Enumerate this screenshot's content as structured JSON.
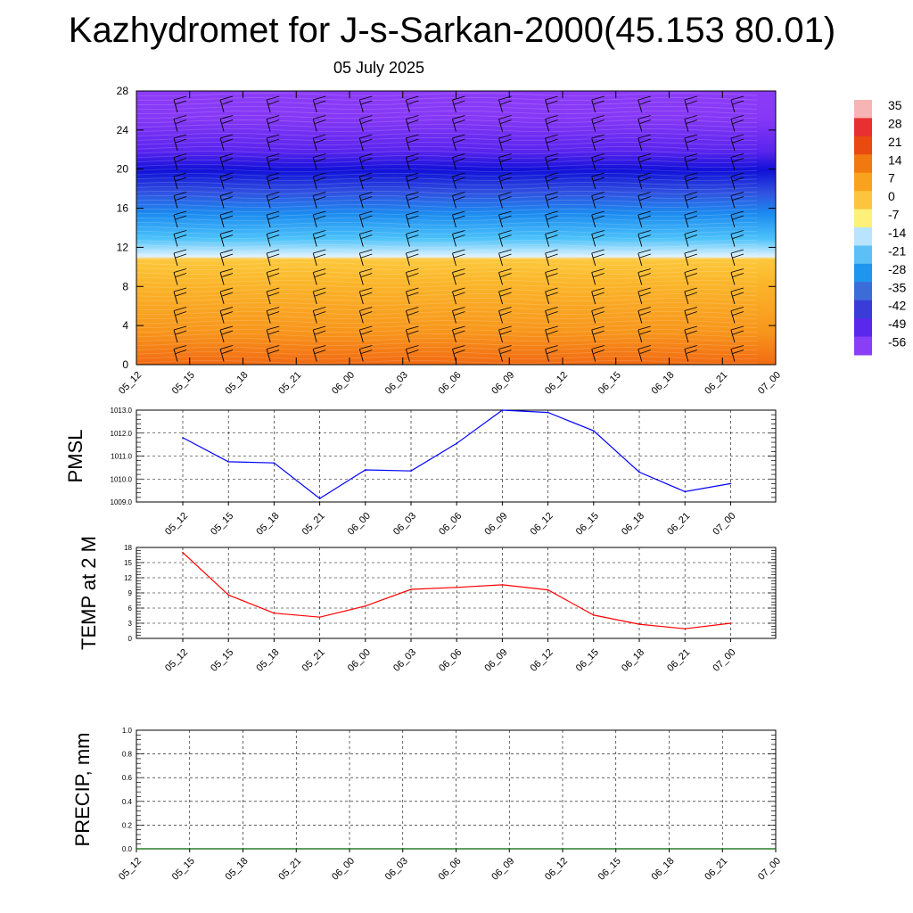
{
  "title": "Kazhydromet for J-s-Sarkan-2000(45.153 80.01)",
  "subtitle": "05 July 2025",
  "chart_data": [
    {
      "type": "heatmap",
      "name": "temperature-height-section",
      "title": "",
      "ylabel": "",
      "x_ticks": [
        "05_12",
        "05_15",
        "05_18",
        "05_21",
        "06_00",
        "06_03",
        "06_06",
        "06_09",
        "06_12",
        "06_15",
        "06_18",
        "06_21",
        "07_00"
      ],
      "y_ticks": [
        0,
        4,
        8,
        12,
        16,
        20,
        24,
        28
      ],
      "ylim": [
        0,
        28
      ],
      "colorbar_labels": [
        "35",
        "28",
        "21",
        "14",
        "7",
        "0",
        "-7",
        "-14",
        "-21",
        "-28",
        "-35",
        "-42",
        "-49",
        "-56"
      ],
      "colorbar_colors": [
        "#f7b4b4",
        "#e83030",
        "#e84a10",
        "#f07a10",
        "#f9a21e",
        "#fdc43e",
        "#fff07a",
        "#b8e4ff",
        "#5cc0f6",
        "#1e96ee",
        "#3c6cd8",
        "#3a3cd8",
        "#5a28ec",
        "#8a3ef6"
      ],
      "layers": [
        {
          "range": [
            0,
            11
          ],
          "description_color": "orange"
        },
        {
          "range": [
            11,
            14
          ],
          "description_color": "light-blue"
        },
        {
          "range": [
            14,
            18
          ],
          "description_color": "blue"
        },
        {
          "range": [
            18,
            22
          ],
          "description_color": "dark-blue"
        },
        {
          "range": [
            22,
            28
          ],
          "description_color": "purple"
        }
      ]
    },
    {
      "type": "line",
      "name": "pmsl",
      "ylabel": "PMSL",
      "categories": [
        "05_12",
        "05_15",
        "05_18",
        "05_21",
        "06_00",
        "06_03",
        "06_06",
        "06_09",
        "06_12",
        "06_15",
        "06_18",
        "06_21",
        "07_00"
      ],
      "series": [
        {
          "values": [
            1011.8,
            1010.75,
            1010.7,
            1009.15,
            1010.4,
            1010.35,
            1011.55,
            1013.0,
            1012.9,
            1012.1,
            1010.3,
            1009.45,
            1009.8
          ],
          "color": "#0000ff"
        }
      ],
      "ylim": [
        1009.0,
        1013.0
      ],
      "y_ticks": [
        "1009.0",
        "1010.0",
        "1011.0",
        "1012.0",
        "1013.0"
      ],
      "grid": true
    },
    {
      "type": "line",
      "name": "temp-2m",
      "ylabel": "TEMP at 2 M",
      "categories": [
        "05_12",
        "05_15",
        "05_18",
        "05_21",
        "06_00",
        "06_03",
        "06_06",
        "06_09",
        "06_12",
        "06_15",
        "06_18",
        "06_21",
        "07_00"
      ],
      "series": [
        {
          "values": [
            17.0,
            8.6,
            5.0,
            4.2,
            6.4,
            9.7,
            10.1,
            10.6,
            9.6,
            4.6,
            2.8,
            1.9,
            3.0
          ],
          "color": "#ff0000"
        }
      ],
      "ylim": [
        0,
        18
      ],
      "y_ticks": [
        "0",
        "3",
        "6",
        "9",
        "12",
        "15",
        "18"
      ],
      "grid": true
    },
    {
      "type": "line",
      "name": "precip",
      "ylabel": "PRECIP, mm",
      "categories": [
        "05_12",
        "05_15",
        "05_18",
        "05_21",
        "06_00",
        "06_03",
        "06_06",
        "06_09",
        "06_12",
        "06_15",
        "06_18",
        "06_21",
        "07_00"
      ],
      "series": [
        {
          "values": [
            0,
            0,
            0,
            0,
            0,
            0,
            0,
            0,
            0,
            0,
            0,
            0,
            0
          ],
          "color": "#006400"
        }
      ],
      "ylim": [
        0,
        1.0
      ],
      "y_ticks": [
        "0.0",
        "0.2",
        "0.4",
        "0.6",
        "0.8",
        "1.0"
      ],
      "grid": true
    }
  ]
}
